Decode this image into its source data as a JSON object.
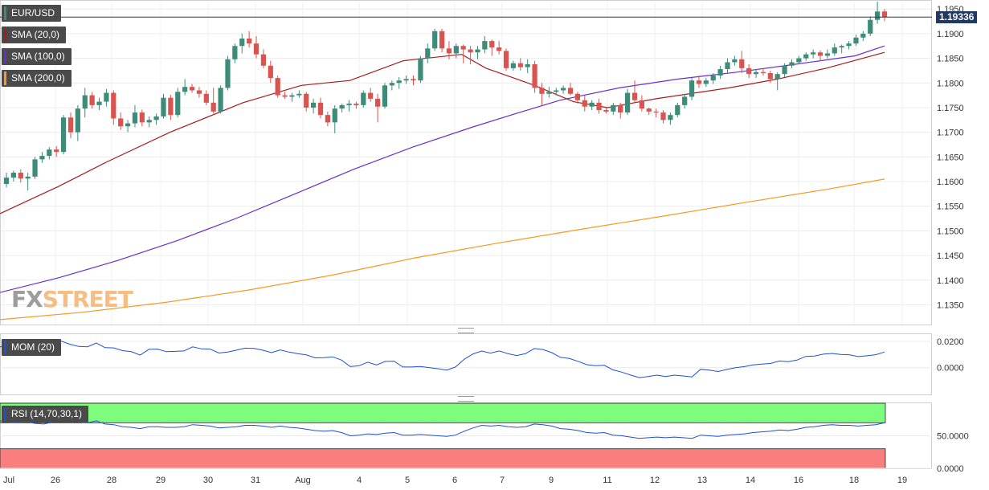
{
  "legends": {
    "symbol": "EUR/USD",
    "sma20": "SMA (20,0)",
    "sma100": "SMA (100,0)",
    "sma200": "SMA (200,0)",
    "mom": "MOM (20)",
    "rsi": "RSI (14,70,30,1)"
  },
  "colors": {
    "up": "#3d8c7a",
    "down": "#d9534f",
    "sma20": "#a61c1c",
    "sma100": "#6a2fc9",
    "sma200": "#f59a23",
    "mom": "#1f4fd6",
    "rsi": "#1f4fd6",
    "rsi_overbought_fill": "#7dfc7d",
    "rsi_oversold_fill": "#f97f7f",
    "price_line": "#1f3864"
  },
  "logo": {
    "fx": "FX",
    "street": "STREET"
  },
  "chart_data": {
    "type": "line",
    "symbol": "EUR/USD",
    "last_price": "1.19336",
    "date_labels": [
      "Jul",
      "26",
      "28",
      "29",
      "30",
      "31",
      "Aug",
      "4",
      "5",
      "6",
      "7",
      "9",
      "11",
      "12",
      "13",
      "14",
      "16",
      "18",
      "19"
    ],
    "price_axis": {
      "ylim": [
        1.131,
        1.1965
      ],
      "ticks": [
        "1.1950",
        "1.1900",
        "1.1850",
        "1.1800",
        "1.1750",
        "1.1700",
        "1.1650",
        "1.1600",
        "1.1550",
        "1.1500",
        "1.1450",
        "1.1400",
        "1.1350"
      ]
    },
    "mom_axis": {
      "ylim": [
        -0.0205,
        0.0255
      ],
      "ticks": [
        "0.0200",
        "0.0000"
      ]
    },
    "rsi_axis": {
      "ylim": [
        0,
        100
      ],
      "ticks": [
        "50.0000",
        "0.0000"
      ]
    },
    "candles": [
      [
        1.1595,
        1.1618,
        1.1588,
        1.1608
      ],
      [
        1.1608,
        1.1622,
        1.16,
        1.1618
      ],
      [
        1.1618,
        1.1625,
        1.1598,
        1.1606
      ],
      [
        1.1606,
        1.1618,
        1.1582,
        1.161
      ],
      [
        1.161,
        1.165,
        1.1605,
        1.1645
      ],
      [
        1.1645,
        1.166,
        1.1638,
        1.1652
      ],
      [
        1.1652,
        1.167,
        1.1645,
        1.1665
      ],
      [
        1.1665,
        1.1672,
        1.165,
        1.166
      ],
      [
        1.166,
        1.1735,
        1.1655,
        1.173
      ],
      [
        1.173,
        1.174,
        1.1688,
        1.17
      ],
      [
        1.17,
        1.1755,
        1.1682,
        1.1748
      ],
      [
        1.1748,
        1.179,
        1.173,
        1.1775
      ],
      [
        1.1775,
        1.1782,
        1.1748,
        1.1755
      ],
      [
        1.1755,
        1.177,
        1.1745,
        1.1762
      ],
      [
        1.1762,
        1.1788,
        1.1752,
        1.178
      ],
      [
        1.178,
        1.1785,
        1.1715,
        1.1728
      ],
      [
        1.1728,
        1.174,
        1.1705,
        1.1712
      ],
      [
        1.1712,
        1.1725,
        1.17,
        1.1718
      ],
      [
        1.1718,
        1.1755,
        1.171,
        1.174
      ],
      [
        1.174,
        1.1746,
        1.1712,
        1.172
      ],
      [
        1.172,
        1.1732,
        1.171,
        1.1725
      ],
      [
        1.1725,
        1.1738,
        1.1715,
        1.1732
      ],
      [
        1.1732,
        1.1778,
        1.1728,
        1.177
      ],
      [
        1.177,
        1.1776,
        1.1725,
        1.1735
      ],
      [
        1.1735,
        1.179,
        1.173,
        1.1782
      ],
      [
        1.1782,
        1.1808,
        1.1775,
        1.1792
      ],
      [
        1.1792,
        1.1798,
        1.178,
        1.1785
      ],
      [
        1.1785,
        1.1792,
        1.177,
        1.1778
      ],
      [
        1.1778,
        1.1785,
        1.1755,
        1.176
      ],
      [
        1.176,
        1.179,
        1.1738,
        1.1742
      ],
      [
        1.1742,
        1.1795,
        1.1738,
        1.179
      ],
      [
        1.179,
        1.1855,
        1.1785,
        1.1848
      ],
      [
        1.1848,
        1.188,
        1.184,
        1.1875
      ],
      [
        1.1875,
        1.19,
        1.186,
        1.189
      ],
      [
        1.189,
        1.1905,
        1.1872,
        1.188
      ],
      [
        1.188,
        1.1895,
        1.185,
        1.1858
      ],
      [
        1.1858,
        1.1868,
        1.183,
        1.1835
      ],
      [
        1.1835,
        1.1845,
        1.18,
        1.181
      ],
      [
        1.181,
        1.1815,
        1.177,
        1.1775
      ],
      [
        1.1775,
        1.1782,
        1.1768,
        1.1772
      ],
      [
        1.1772,
        1.178,
        1.1762,
        1.1775
      ],
      [
        1.1775,
        1.1785,
        1.177,
        1.1778
      ],
      [
        1.1778,
        1.1782,
        1.1742,
        1.175
      ],
      [
        1.175,
        1.1768,
        1.1738,
        1.176
      ],
      [
        1.176,
        1.177,
        1.1728,
        1.1735
      ],
      [
        1.1735,
        1.1742,
        1.1712,
        1.172
      ],
      [
        1.172,
        1.1755,
        1.1698,
        1.1748
      ],
      [
        1.1748,
        1.1758,
        1.174,
        1.1755
      ],
      [
        1.1755,
        1.1765,
        1.1742,
        1.1758
      ],
      [
        1.1758,
        1.1762,
        1.1748,
        1.1755
      ],
      [
        1.1755,
        1.1785,
        1.175,
        1.178
      ],
      [
        1.178,
        1.179,
        1.1762,
        1.1768
      ],
      [
        1.1768,
        1.1778,
        1.172,
        1.1752
      ],
      [
        1.1752,
        1.18,
        1.1748,
        1.1795
      ],
      [
        1.1795,
        1.1805,
        1.1785,
        1.18
      ],
      [
        1.18,
        1.1812,
        1.1788,
        1.1805
      ],
      [
        1.1805,
        1.1815,
        1.1798,
        1.1808
      ],
      [
        1.1808,
        1.1815,
        1.1795,
        1.1805
      ],
      [
        1.1805,
        1.1855,
        1.18,
        1.185
      ],
      [
        1.185,
        1.188,
        1.184,
        1.187
      ],
      [
        1.187,
        1.191,
        1.1865,
        1.1905
      ],
      [
        1.1905,
        1.191,
        1.1862,
        1.187
      ],
      [
        1.187,
        1.1885,
        1.1848,
        1.186
      ],
      [
        1.186,
        1.188,
        1.185,
        1.1875
      ],
      [
        1.1875,
        1.1878,
        1.184,
        1.1868
      ],
      [
        1.1868,
        1.1875,
        1.1838,
        1.1862
      ],
      [
        1.1862,
        1.1875,
        1.1848,
        1.1868
      ],
      [
        1.1868,
        1.1895,
        1.186,
        1.1885
      ],
      [
        1.1885,
        1.1888,
        1.1855,
        1.1872
      ],
      [
        1.1872,
        1.1885,
        1.1858,
        1.1865
      ],
      [
        1.1865,
        1.187,
        1.1825,
        1.183
      ],
      [
        1.183,
        1.1845,
        1.1825,
        1.184
      ],
      [
        1.184,
        1.185,
        1.1825,
        1.1832
      ],
      [
        1.1832,
        1.1848,
        1.182,
        1.1838
      ],
      [
        1.1838,
        1.1845,
        1.178,
        1.179
      ],
      [
        1.179,
        1.18,
        1.1755,
        1.1778
      ],
      [
        1.1778,
        1.1792,
        1.177,
        1.1782
      ],
      [
        1.1782,
        1.179,
        1.1775,
        1.1785
      ],
      [
        1.1785,
        1.1795,
        1.1778,
        1.179
      ],
      [
        1.179,
        1.18,
        1.1775,
        1.1778
      ],
      [
        1.1778,
        1.1782,
        1.1758,
        1.1765
      ],
      [
        1.1765,
        1.1775,
        1.1742,
        1.1752
      ],
      [
        1.1752,
        1.1765,
        1.1745,
        1.176
      ],
      [
        1.176,
        1.1768,
        1.1738,
        1.1745
      ],
      [
        1.1745,
        1.1752,
        1.1738,
        1.1742
      ],
      [
        1.1742,
        1.176,
        1.1735,
        1.1755
      ],
      [
        1.1755,
        1.176,
        1.1728,
        1.174
      ],
      [
        1.174,
        1.1788,
        1.1735,
        1.178
      ],
      [
        1.178,
        1.1805,
        1.176,
        1.1765
      ],
      [
        1.1765,
        1.1775,
        1.1742,
        1.1748
      ],
      [
        1.1748,
        1.175,
        1.1735,
        1.1742
      ],
      [
        1.1742,
        1.1748,
        1.173,
        1.174
      ],
      [
        1.174,
        1.1745,
        1.1718,
        1.1725
      ],
      [
        1.1725,
        1.174,
        1.1715,
        1.1735
      ],
      [
        1.1735,
        1.176,
        1.173,
        1.1755
      ],
      [
        1.1755,
        1.1778,
        1.1748,
        1.1772
      ],
      [
        1.1772,
        1.181,
        1.1765,
        1.1805
      ],
      [
        1.1805,
        1.1815,
        1.179,
        1.1798
      ],
      [
        1.1798,
        1.181,
        1.1792,
        1.1805
      ],
      [
        1.1805,
        1.182,
        1.1798,
        1.1815
      ],
      [
        1.1815,
        1.1835,
        1.1808,
        1.1828
      ],
      [
        1.1828,
        1.185,
        1.182,
        1.1842
      ],
      [
        1.1842,
        1.1855,
        1.1835,
        1.1848
      ],
      [
        1.1848,
        1.1865,
        1.182,
        1.183
      ],
      [
        1.183,
        1.1838,
        1.181,
        1.1818
      ],
      [
        1.1818,
        1.1828,
        1.181,
        1.1822
      ],
      [
        1.1822,
        1.183,
        1.1815,
        1.182
      ],
      [
        1.182,
        1.1825,
        1.18,
        1.1808
      ],
      [
        1.1808,
        1.1822,
        1.1785,
        1.1818
      ],
      [
        1.1818,
        1.184,
        1.1812,
        1.1835
      ],
      [
        1.1835,
        1.1848,
        1.183,
        1.1842
      ],
      [
        1.1842,
        1.1855,
        1.1838,
        1.185
      ],
      [
        1.185,
        1.1862,
        1.1845,
        1.1858
      ],
      [
        1.1858,
        1.1868,
        1.185,
        1.1862
      ],
      [
        1.1862,
        1.1866,
        1.1845,
        1.1855
      ],
      [
        1.1855,
        1.1868,
        1.185,
        1.186
      ],
      [
        1.186,
        1.188,
        1.1855,
        1.1872
      ],
      [
        1.1872,
        1.1878,
        1.186,
        1.1875
      ],
      [
        1.1875,
        1.1885,
        1.1868,
        1.188
      ],
      [
        1.188,
        1.1898,
        1.1875,
        1.1892
      ],
      [
        1.1892,
        1.1905,
        1.1885,
        1.19
      ],
      [
        1.19,
        1.1935,
        1.1895,
        1.1928
      ],
      [
        1.1928,
        1.1965,
        1.192,
        1.1945
      ],
      [
        1.1945,
        1.195,
        1.1925,
        1.19336
      ]
    ],
    "sma20": [
      [
        0,
        1.1535
      ],
      [
        12,
        1.159
      ],
      [
        22,
        1.164
      ],
      [
        35,
        1.17
      ],
      [
        50,
        1.176
      ],
      [
        62,
        1.1795
      ],
      [
        72,
        1.1805
      ],
      [
        83,
        1.1845
      ],
      [
        95,
        1.1858
      ],
      [
        100,
        1.183
      ],
      [
        110,
        1.1795
      ],
      [
        118,
        1.1762
      ],
      [
        125,
        1.175
      ],
      [
        135,
        1.1768
      ],
      [
        150,
        1.179
      ],
      [
        160,
        1.1808
      ],
      [
        170,
        1.183
      ],
      [
        182,
        1.1862
      ]
    ],
    "sma100": [
      [
        0,
        1.1375
      ],
      [
        20,
        1.1405
      ],
      [
        40,
        1.144
      ],
      [
        60,
        1.148
      ],
      [
        80,
        1.1525
      ],
      [
        100,
        1.1575
      ],
      [
        120,
        1.1625
      ],
      [
        140,
        1.167
      ],
      [
        160,
        1.171
      ],
      [
        175,
        1.1738
      ],
      [
        190,
        1.1765
      ],
      [
        210,
        1.179
      ],
      [
        230,
        1.1808
      ],
      [
        250,
        1.1822
      ],
      [
        270,
        1.1838
      ],
      [
        290,
        1.1855
      ],
      [
        300,
        1.1875
      ]
    ],
    "sma200": [
      [
        0,
        1.132
      ],
      [
        30,
        1.1335
      ],
      [
        60,
        1.1355
      ],
      [
        90,
        1.138
      ],
      [
        120,
        1.141
      ],
      [
        150,
        1.1445
      ],
      [
        180,
        1.1475
      ],
      [
        210,
        1.1503
      ],
      [
        240,
        1.153
      ],
      [
        270,
        1.1558
      ],
      [
        300,
        1.1585
      ],
      [
        320,
        1.1605
      ]
    ],
    "mom": [
      0.0158,
      0.0162,
      0.0158,
      0.0172,
      0.0155,
      0.0149,
      0.0176,
      0.0202,
      0.0178,
      0.0161,
      0.0159,
      0.0187,
      0.0152,
      0.015,
      0.0129,
      0.0121,
      0.0095,
      0.0139,
      0.0141,
      0.0121,
      0.0124,
      0.0127,
      0.0158,
      0.0143,
      0.0141,
      0.0111,
      0.0118,
      0.0133,
      0.0148,
      0.0146,
      0.0133,
      0.0114,
      0.0135,
      0.0118,
      0.0106,
      0.0096,
      0.0074,
      0.0076,
      0.0082,
      0.0057,
      0.0007,
      0.0014,
      0.0041,
      0.002,
      0.0047,
      0.0049,
      0.0004,
      0.0004,
      0.0008,
      0.0,
      -0.0009,
      -0.0019,
      0.0004,
      0.0063,
      0.0104,
      0.0126,
      0.011,
      0.0127,
      0.0106,
      0.0092,
      0.0106,
      0.0145,
      0.0138,
      0.0114,
      0.0078,
      0.0069,
      0.0048,
      0.0022,
      0.0014,
      0.0017,
      -0.0018,
      -0.0035,
      -0.0057,
      -0.0077,
      -0.0069,
      -0.0058,
      -0.0068,
      -0.0058,
      -0.0064,
      -0.0071,
      -0.0013,
      -0.002,
      -0.003,
      -0.0014,
      -0.0001,
      0.0007,
      0.0021,
      0.0027,
      0.0032,
      0.005,
      0.0045,
      0.0057,
      0.0085,
      0.0088,
      0.0102,
      0.0108,
      0.01,
      0.0097,
      0.0084,
      0.009,
      0.0098,
      0.0119
    ],
    "rsi": [
      73,
      71,
      70,
      72,
      69,
      68,
      71,
      75,
      73,
      71,
      70,
      73,
      68,
      67,
      64,
      63,
      61,
      64,
      64,
      63,
      63,
      64,
      67,
      66,
      65,
      62,
      63,
      64,
      66,
      66,
      65,
      63,
      65,
      63,
      62,
      60,
      58,
      57,
      58,
      55,
      50,
      51,
      53,
      52,
      54,
      55,
      51,
      51,
      52,
      51,
      50,
      49,
      51,
      57,
      62,
      66,
      65,
      66,
      64,
      63,
      64,
      68,
      67,
      65,
      61,
      60,
      58,
      55,
      54,
      55,
      51,
      50,
      48,
      46,
      47,
      48,
      47,
      48,
      47,
      46,
      51,
      50,
      49,
      51,
      52,
      53,
      55,
      56,
      57,
      59,
      58,
      60,
      63,
      64,
      66,
      67,
      66,
      66,
      65,
      66,
      67,
      70
    ]
  }
}
